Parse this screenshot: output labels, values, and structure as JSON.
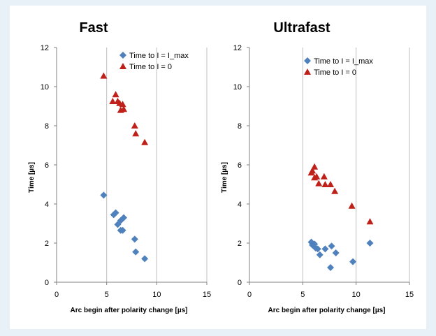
{
  "colors": {
    "series1": "#4f81bd",
    "series2": "#c0201a",
    "grid": "#bfbfbf",
    "background": "#e9f1f8"
  },
  "chart_data": [
    {
      "type": "scatter",
      "title": "Fast",
      "xlabel": "Arc begin after polarity change  [µs]",
      "ylabel": "Time [µs]",
      "xlim": [
        0,
        15
      ],
      "ylim": [
        0,
        12
      ],
      "xticks": [
        0,
        5,
        10,
        15
      ],
      "yticks": [
        0,
        2,
        4,
        6,
        8,
        10,
        12
      ],
      "grid": "vertical",
      "legend": "top-right",
      "series": [
        {
          "name": "Time to I = I_max",
          "marker": "diamond",
          "points": [
            [
              4.7,
              4.45
            ],
            [
              5.7,
              3.45
            ],
            [
              5.9,
              3.55
            ],
            [
              6.1,
              2.95
            ],
            [
              6.4,
              3.15
            ],
            [
              6.7,
              3.3
            ],
            [
              6.4,
              2.65
            ],
            [
              6.6,
              2.65
            ],
            [
              7.8,
              2.2
            ],
            [
              7.9,
              1.55
            ],
            [
              8.8,
              1.2
            ]
          ]
        },
        {
          "name": "Time to I = 0",
          "marker": "triangle",
          "points": [
            [
              4.7,
              10.55
            ],
            [
              5.6,
              9.25
            ],
            [
              5.9,
              9.6
            ],
            [
              6.1,
              9.25
            ],
            [
              6.3,
              9.15
            ],
            [
              6.4,
              8.8
            ],
            [
              6.6,
              9.1
            ],
            [
              6.7,
              8.85
            ],
            [
              7.8,
              8.0
            ],
            [
              7.9,
              7.6
            ],
            [
              8.8,
              7.15
            ]
          ]
        }
      ]
    },
    {
      "type": "scatter",
      "title": "Ultrafast",
      "xlabel": "Arc begin after polarity change  [µs]",
      "ylabel": "Time [µs]",
      "xlim": [
        0,
        15
      ],
      "ylim": [
        0,
        12
      ],
      "xticks": [
        0,
        5,
        10,
        15
      ],
      "yticks": [
        0,
        2,
        4,
        6,
        8,
        10,
        12
      ],
      "grid": "vertical",
      "legend": "top-right",
      "series": [
        {
          "name": "Time to I = I_max",
          "marker": "diamond",
          "points": [
            [
              5.8,
              2.05
            ],
            [
              5.9,
              1.9
            ],
            [
              6.1,
              1.95
            ],
            [
              6.2,
              1.75
            ],
            [
              6.4,
              1.7
            ],
            [
              6.6,
              1.4
            ],
            [
              7.1,
              1.7
            ],
            [
              7.6,
              0.75
            ],
            [
              7.7,
              1.85
            ],
            [
              8.1,
              1.5
            ],
            [
              9.7,
              1.05
            ],
            [
              11.3,
              2.0
            ]
          ]
        },
        {
          "name": "Time to I = 0",
          "marker": "triangle",
          "points": [
            [
              5.8,
              5.6
            ],
            [
              5.9,
              5.7
            ],
            [
              6.1,
              5.9
            ],
            [
              6.1,
              5.35
            ],
            [
              6.3,
              5.4
            ],
            [
              6.5,
              5.05
            ],
            [
              7.0,
              5.4
            ],
            [
              7.1,
              5.0
            ],
            [
              7.6,
              5.0
            ],
            [
              8.0,
              4.65
            ],
            [
              9.6,
              3.9
            ],
            [
              11.3,
              3.1
            ]
          ]
        }
      ]
    }
  ]
}
